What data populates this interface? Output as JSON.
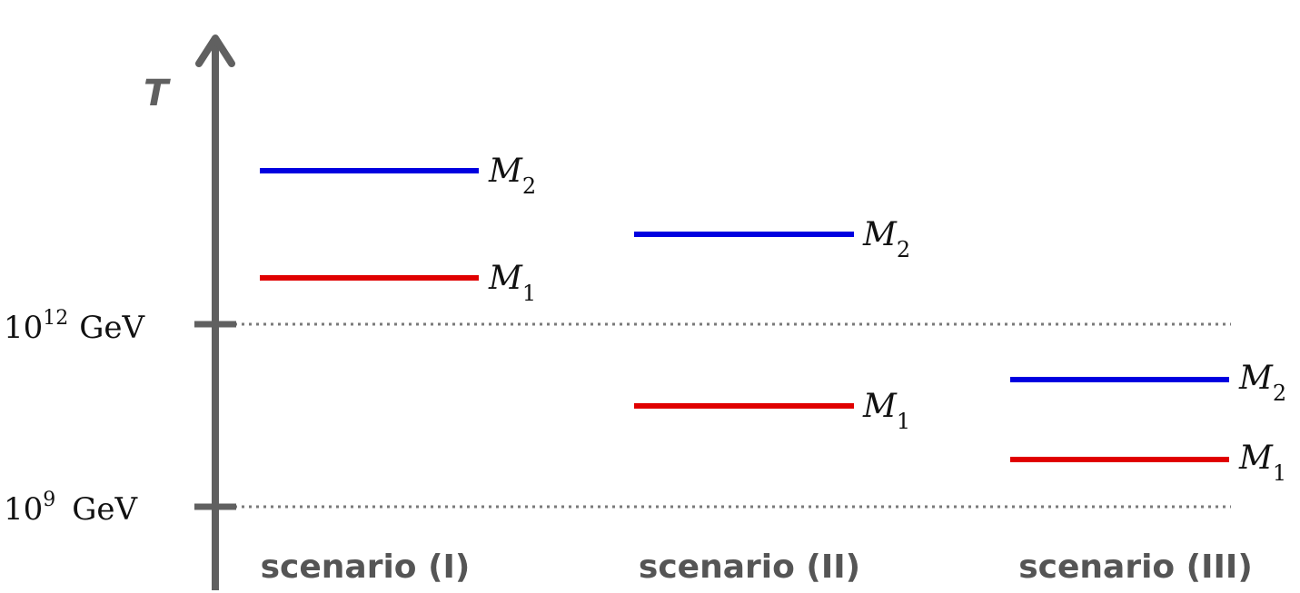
{
  "colors": {
    "axis": "#606060",
    "dotted": "#7a7a7a",
    "M1": "#e00000",
    "M2": "#0000e0",
    "scenario_text": "#555555"
  },
  "axis": {
    "label": "T",
    "ticks": [
      {
        "base": "10",
        "exponent": "12",
        "unit": "GeV"
      },
      {
        "base": "10",
        "exponent": "9",
        "unit": "GeV"
      }
    ]
  },
  "scenarios": [
    {
      "label": "scenario (I)",
      "levels": [
        {
          "name": "M",
          "sub": "2",
          "color_key": "M2"
        },
        {
          "name": "M",
          "sub": "1",
          "color_key": "M1"
        }
      ]
    },
    {
      "label": "scenario (II)",
      "levels": [
        {
          "name": "M",
          "sub": "2",
          "color_key": "M2"
        },
        {
          "name": "M",
          "sub": "1",
          "color_key": "M1"
        }
      ]
    },
    {
      "label": "scenario (III)",
      "levels": [
        {
          "name": "M",
          "sub": "2",
          "color_key": "M2"
        },
        {
          "name": "M",
          "sub": "1",
          "color_key": "M1"
        }
      ]
    }
  ]
}
